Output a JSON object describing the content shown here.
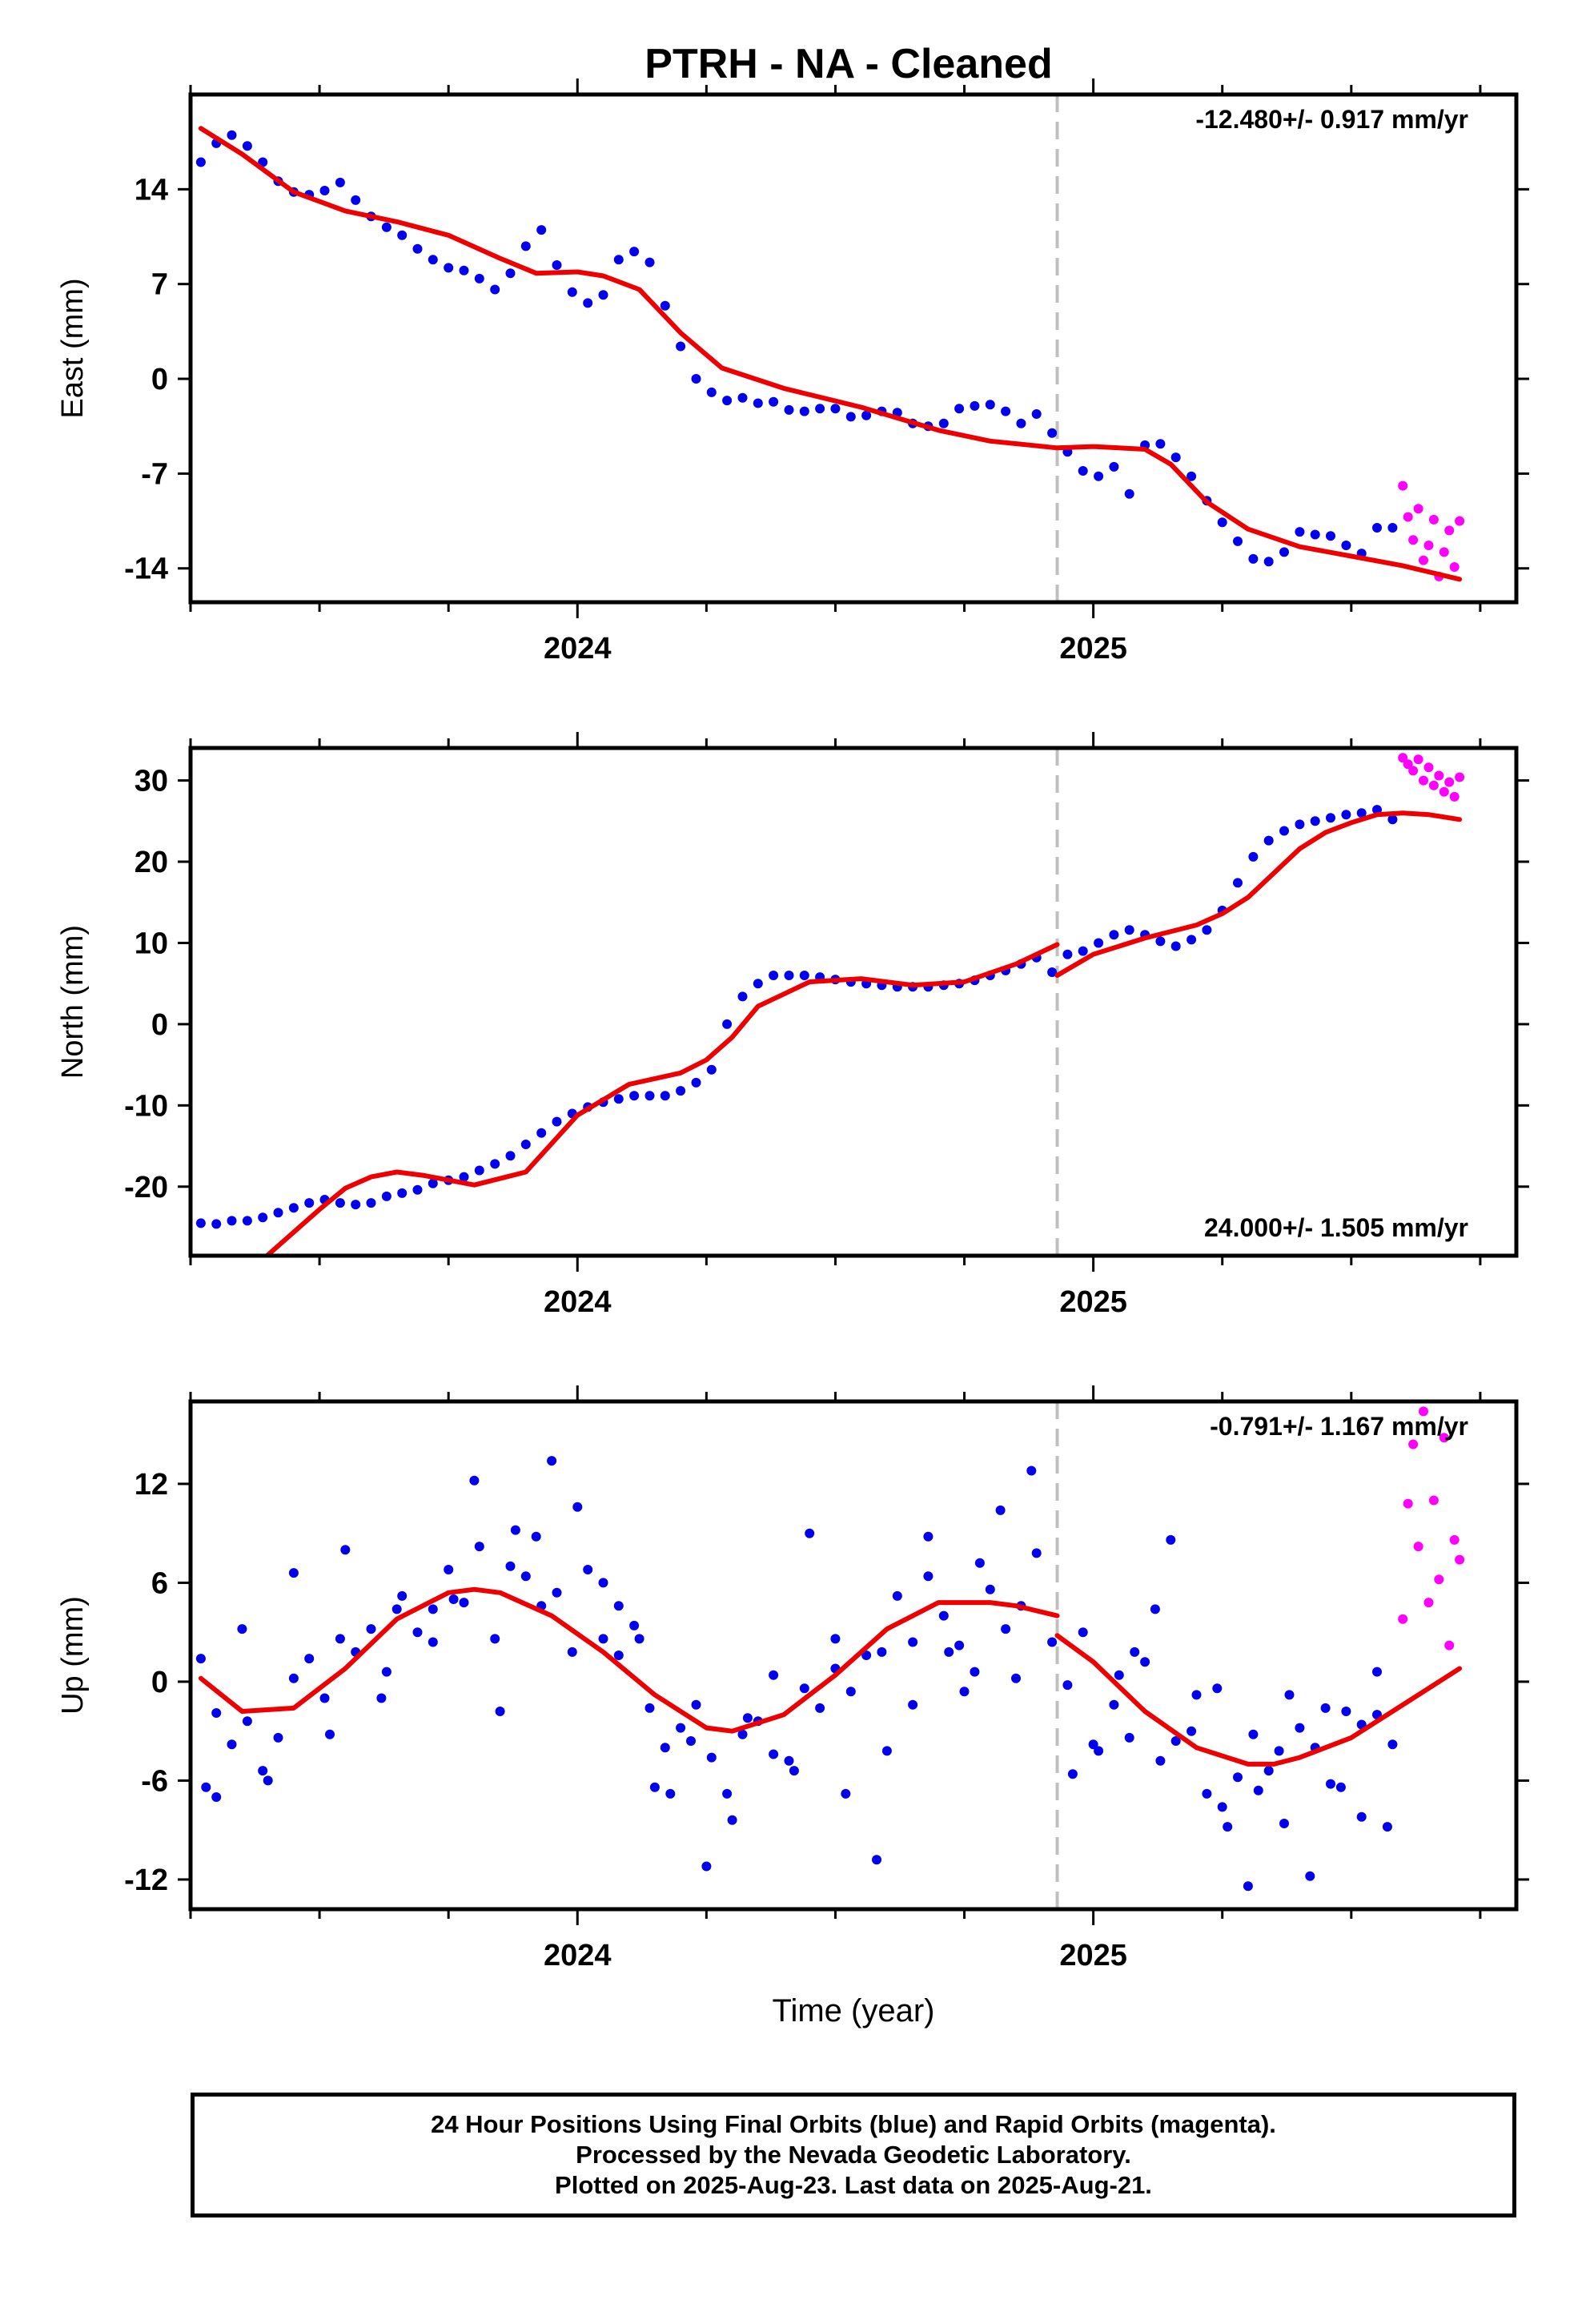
{
  "page_title": "PTRH  - NA - Cleaned",
  "footer": {
    "line1": "24 Hour Positions Using Final Orbits (blue) and Rapid Orbits (magenta).",
    "line2": "Processed by the Nevada Geodetic Laboratory.",
    "line3": "Plotted on 2025-Aug-23. Last data on 2025-Aug-21."
  },
  "colors": {
    "final": "#0000ee",
    "rapid": "#ff00ff",
    "model": "#ee0000",
    "step": "#c0c0c0"
  },
  "chart_data": [
    {
      "type": "scatter",
      "ylabel": "East (mm)",
      "rate": "-12.480+/- 0.917 mm/yr",
      "rate_position": "top-right",
      "xlim": [
        2023.25,
        2025.82
      ],
      "ylim": [
        -16.5,
        21
      ],
      "yticks": [
        -14,
        -7,
        0,
        7,
        14
      ],
      "xticks": [
        2024,
        2025
      ],
      "xlabel": "",
      "step_epoch": 2024.93,
      "series": [
        {
          "kind": "final",
          "x": [
            2023.27,
            2023.3,
            2023.33,
            2023.36,
            2023.39,
            2023.42,
            2023.45,
            2023.48,
            2023.51,
            2023.54,
            2023.57,
            2023.6,
            2023.63,
            2023.66,
            2023.69,
            2023.72,
            2023.75,
            2023.78,
            2023.81,
            2023.84,
            2023.87,
            2023.9,
            2023.93,
            2023.96,
            2023.99,
            2024.02,
            2024.05,
            2024.08,
            2024.11,
            2024.14,
            2024.17,
            2024.2,
            2024.23,
            2024.26,
            2024.29,
            2024.32,
            2024.35,
            2024.38,
            2024.41,
            2024.44,
            2024.47,
            2024.5,
            2024.53,
            2024.56,
            2024.59,
            2024.62,
            2024.65,
            2024.68,
            2024.71,
            2024.74,
            2024.77,
            2024.8,
            2024.83,
            2024.86,
            2024.89,
            2024.92,
            2024.95,
            2024.98,
            2025.01,
            2025.04,
            2025.07,
            2025.1,
            2025.13,
            2025.16,
            2025.19,
            2025.22,
            2025.25,
            2025.28,
            2025.31,
            2025.34,
            2025.37,
            2025.4,
            2025.43,
            2025.46,
            2025.49,
            2025.52,
            2025.55,
            2025.58
          ],
          "y": [
            16.0,
            17.4,
            18.0,
            17.2,
            16.0,
            14.6,
            13.8,
            13.6,
            13.9,
            14.5,
            13.2,
            12.0,
            11.2,
            10.6,
            9.6,
            8.8,
            8.2,
            8.0,
            7.4,
            6.6,
            7.8,
            9.8,
            11.0,
            8.4,
            6.4,
            5.6,
            6.2,
            8.8,
            9.4,
            8.6,
            5.4,
            2.4,
            0.0,
            -1.0,
            -1.6,
            -1.4,
            -1.8,
            -1.7,
            -2.3,
            -2.4,
            -2.2,
            -2.2,
            -2.8,
            -2.7,
            -2.4,
            -2.5,
            -3.3,
            -3.5,
            -3.3,
            -2.2,
            -2.0,
            -1.9,
            -2.4,
            -3.3,
            -2.6,
            -4.0,
            -5.4,
            -6.8,
            -7.2,
            -6.5,
            -8.5,
            -4.9,
            -4.8,
            -5.8,
            -7.2,
            -9.0,
            -10.6,
            -12.0,
            -13.3,
            -13.5,
            -12.8,
            -11.3,
            -11.5,
            -11.6,
            -12.3,
            -12.9,
            -11.0,
            -11.0
          ]
        },
        {
          "kind": "rapid",
          "x": [
            2025.6,
            2025.61,
            2025.62,
            2025.63,
            2025.64,
            2025.65,
            2025.66,
            2025.67,
            2025.68,
            2025.69,
            2025.7,
            2025.71
          ],
          "y": [
            -7.9,
            -10.2,
            -11.9,
            -9.6,
            -13.4,
            -12.3,
            -10.4,
            -14.6,
            -12.8,
            -11.2,
            -13.9,
            -10.5
          ]
        },
        {
          "kind": "model",
          "x": [
            2023.27,
            2023.35,
            2023.45,
            2023.55,
            2023.65,
            2023.75,
            2023.85,
            2023.92,
            2024.0,
            2024.05,
            2024.12,
            2024.2,
            2024.28,
            2024.4,
            2024.55,
            2024.7,
            2024.8,
            2024.93,
            2025.0,
            2025.1,
            2025.15,
            2025.22,
            2025.3,
            2025.4,
            2025.5,
            2025.6,
            2025.71
          ],
          "y": [
            18.5,
            16.6,
            13.8,
            12.4,
            11.6,
            10.6,
            8.9,
            7.8,
            7.9,
            7.6,
            6.6,
            3.4,
            0.8,
            -0.7,
            -2.1,
            -3.8,
            -4.6,
            -5.1,
            -5.0,
            -5.2,
            -6.3,
            -9.1,
            -11.1,
            -12.4,
            -13.1,
            -13.8,
            -14.8
          ]
        }
      ]
    },
    {
      "type": "scatter",
      "ylabel": "North (mm)",
      "rate": "24.000+/- 1.505 mm/yr",
      "rate_position": "bottom-right",
      "xlim": [
        2023.25,
        2025.82
      ],
      "ylim": [
        -28.5,
        34
      ],
      "yticks": [
        -20,
        -10,
        0,
        10,
        20,
        30
      ],
      "xticks": [
        2024,
        2025
      ],
      "xlabel": "",
      "step_epoch": 2024.93,
      "series": [
        {
          "kind": "final",
          "x": [
            2023.27,
            2023.3,
            2023.33,
            2023.36,
            2023.39,
            2023.42,
            2023.45,
            2023.48,
            2023.51,
            2023.54,
            2023.57,
            2023.6,
            2023.63,
            2023.66,
            2023.69,
            2023.72,
            2023.75,
            2023.78,
            2023.81,
            2023.84,
            2023.87,
            2023.9,
            2023.93,
            2023.96,
            2023.99,
            2024.02,
            2024.05,
            2024.08,
            2024.11,
            2024.14,
            2024.17,
            2024.2,
            2024.23,
            2024.26,
            2024.29,
            2024.32,
            2024.35,
            2024.38,
            2024.41,
            2024.44,
            2024.47,
            2024.5,
            2024.53,
            2024.56,
            2024.59,
            2024.62,
            2024.65,
            2024.68,
            2024.71,
            2024.74,
            2024.77,
            2024.8,
            2024.83,
            2024.86,
            2024.89,
            2024.92,
            2024.95,
            2024.98,
            2025.01,
            2025.04,
            2025.07,
            2025.1,
            2025.13,
            2025.16,
            2025.19,
            2025.22,
            2025.25,
            2025.28,
            2025.31,
            2025.34,
            2025.37,
            2025.4,
            2025.43,
            2025.46,
            2025.49,
            2025.52,
            2025.55,
            2025.58
          ],
          "y": [
            -24.5,
            -24.6,
            -24.2,
            -24.2,
            -23.8,
            -23.2,
            -22.6,
            -22.0,
            -21.6,
            -22.0,
            -22.2,
            -22.0,
            -21.2,
            -20.8,
            -20.4,
            -19.6,
            -19.2,
            -18.8,
            -18.0,
            -17.2,
            -16.2,
            -14.8,
            -13.4,
            -12.0,
            -11.0,
            -10.2,
            -9.6,
            -9.2,
            -8.8,
            -8.8,
            -8.8,
            -8.2,
            -7.2,
            -5.6,
            0.0,
            3.4,
            5.0,
            6.0,
            6.0,
            6.0,
            5.8,
            5.5,
            5.2,
            5.0,
            4.8,
            4.6,
            4.6,
            4.6,
            4.8,
            5.0,
            5.4,
            6.0,
            6.6,
            7.4,
            8.2,
            6.4,
            8.6,
            9.0,
            10.0,
            11.0,
            11.6,
            11.0,
            10.2,
            9.6,
            10.4,
            11.6,
            14.0,
            17.4,
            20.6,
            22.6,
            23.8,
            24.6,
            25.0,
            25.4,
            25.8,
            26.0,
            26.4,
            25.2
          ]
        },
        {
          "kind": "rapid",
          "x": [
            2025.6,
            2025.61,
            2025.62,
            2025.63,
            2025.64,
            2025.65,
            2025.66,
            2025.67,
            2025.68,
            2025.69,
            2025.7,
            2025.71
          ],
          "y": [
            32.8,
            32.0,
            31.2,
            32.6,
            30.0,
            31.6,
            29.4,
            30.6,
            28.6,
            29.8,
            28.0,
            30.4
          ]
        },
        {
          "kind": "model",
          "x": [
            2023.4,
            2023.5,
            2023.55,
            2023.6,
            2023.65,
            2023.7,
            2023.8,
            2023.9,
            2024.0,
            2024.1,
            2024.2,
            2024.25,
            2024.3,
            2024.35,
            2024.45,
            2024.55,
            2024.65,
            2024.75,
            2024.85,
            2024.93
          ],
          "y": [
            -28.4,
            -22.8,
            -20.2,
            -18.8,
            -18.2,
            -18.6,
            -19.8,
            -18.2,
            -11.2,
            -7.4,
            -6.0,
            -4.4,
            -1.6,
            2.2,
            5.2,
            5.6,
            4.8,
            5.2,
            7.4,
            9.8
          ]
        },
        {
          "kind": "model",
          "x": [
            2024.93,
            2025.0,
            2025.1,
            2025.2,
            2025.25,
            2025.3,
            2025.35,
            2025.4,
            2025.45,
            2025.5,
            2025.55,
            2025.6,
            2025.65,
            2025.71
          ],
          "y": [
            6.0,
            8.6,
            10.6,
            12.2,
            13.6,
            15.6,
            18.6,
            21.6,
            23.6,
            24.8,
            25.8,
            26.0,
            25.8,
            25.2
          ]
        }
      ]
    },
    {
      "type": "scatter",
      "ylabel": "Up (mm)",
      "rate": "-0.791+/- 1.167 mm/yr",
      "rate_position": "top-right",
      "xlim": [
        2023.25,
        2025.82
      ],
      "ylim": [
        -13.8,
        17
      ],
      "yticks": [
        -12,
        -6,
        0,
        6,
        12
      ],
      "xticks": [
        2024,
        2025
      ],
      "xlabel": "Time (year)",
      "step_epoch": 2024.93,
      "series": [
        {
          "kind": "final",
          "x": [
            2023.27,
            2023.3,
            2023.33,
            2023.36,
            2023.39,
            2023.42,
            2023.45,
            2023.48,
            2023.51,
            2023.54,
            2023.57,
            2023.6,
            2023.63,
            2023.66,
            2023.69,
            2023.72,
            2023.75,
            2023.78,
            2023.81,
            2023.84,
            2023.87,
            2023.9,
            2023.93,
            2023.96,
            2023.99,
            2024.02,
            2024.05,
            2024.08,
            2024.11,
            2024.14,
            2024.17,
            2024.2,
            2024.23,
            2024.26,
            2024.29,
            2024.32,
            2024.35,
            2024.38,
            2024.41,
            2024.44,
            2024.47,
            2024.5,
            2024.53,
            2024.56,
            2024.59,
            2024.62,
            2024.65,
            2024.68,
            2024.71,
            2024.74,
            2024.77,
            2024.8,
            2024.83,
            2024.86,
            2024.89,
            2024.92,
            2024.95,
            2024.98,
            2025.01,
            2025.04,
            2025.07,
            2025.1,
            2025.13,
            2025.16,
            2025.19,
            2025.22,
            2025.25,
            2025.28,
            2025.31,
            2025.34,
            2025.37,
            2025.4,
            2025.43,
            2025.46,
            2025.49,
            2025.52,
            2025.55,
            2025.58,
            2023.3,
            2023.4,
            2023.52,
            2023.62,
            2023.72,
            2023.8,
            2023.85,
            2023.92,
            2024.0,
            2024.08,
            2024.15,
            2024.22,
            2024.3,
            2024.38,
            2024.45,
            2024.52,
            2024.6,
            2024.68,
            2024.75,
            2024.82,
            2024.88,
            2025.0,
            2025.05,
            2025.12,
            2025.2,
            2025.26,
            2025.32,
            2025.38,
            2025.45,
            2025.52,
            2025.57,
            2023.28,
            2023.35,
            2023.45,
            2023.55,
            2023.65,
            2023.76,
            2023.88,
            2023.95,
            2024.05,
            2024.12,
            2024.18,
            2024.25,
            2024.33,
            2024.42,
            2024.5,
            2024.58,
            2024.65,
            2024.72,
            2024.78,
            2024.85,
            2024.96,
            2025.08,
            2025.15,
            2025.24,
            2025.3,
            2025.36,
            2025.42,
            2025.48,
            2025.55
          ],
          "y": [
            1.4,
            -1.9,
            -3.8,
            -2.4,
            -5.4,
            -3.4,
            0.2,
            1.4,
            -1.0,
            2.6,
            1.8,
            3.2,
            0.6,
            5.2,
            3.0,
            4.4,
            6.8,
            4.8,
            8.2,
            2.6,
            7.0,
            6.4,
            4.6,
            5.4,
            1.8,
            6.8,
            2.6,
            1.6,
            3.4,
            -1.6,
            -4.0,
            -2.8,
            -1.4,
            -4.6,
            -6.8,
            -3.2,
            -2.4,
            0.4,
            -4.8,
            -0.4,
            -1.6,
            0.8,
            -0.6,
            1.6,
            1.8,
            5.2,
            2.4,
            6.4,
            4.0,
            2.2,
            0.6,
            5.6,
            3.2,
            4.6,
            7.8,
            2.4,
            -0.2,
            3.0,
            -4.2,
            -1.4,
            -3.4,
            1.2,
            -4.8,
            -3.6,
            -3.0,
            -6.8,
            -7.6,
            -5.8,
            -3.2,
            -5.4,
            -8.6,
            -2.8,
            -4.0,
            -6.2,
            -1.8,
            -2.6,
            0.6,
            -3.8,
            -7.0,
            -6.0,
            -3.2,
            -1.0,
            2.4,
            12.2,
            -1.8,
            8.8,
            10.6,
            4.6,
            -6.4,
            -3.6,
            -8.4,
            -4.4,
            9.0,
            -6.8,
            -4.2,
            8.8,
            -0.6,
            10.4,
            12.8,
            -3.8,
            0.4,
            4.4,
            -0.8,
            -8.8,
            -6.6,
            -0.8,
            -1.6,
            -8.2,
            -8.8,
            -6.4,
            3.2,
            6.6,
            8.0,
            4.4,
            5.0,
            9.2,
            13.4,
            6.0,
            2.6,
            -6.8,
            -11.2,
            -2.2,
            -5.4,
            2.6,
            -10.8,
            -1.4,
            1.8,
            7.2,
            0.2,
            -5.6,
            1.8,
            8.6,
            -0.4,
            -12.4,
            -4.2,
            -11.8,
            -6.4,
            -2.0
          ]
        },
        {
          "kind": "rapid",
          "x": [
            2025.6,
            2025.61,
            2025.62,
            2025.63,
            2025.64,
            2025.65,
            2025.66,
            2025.67,
            2025.68,
            2025.69,
            2025.7,
            2025.71
          ],
          "y": [
            3.8,
            10.8,
            14.4,
            8.2,
            16.4,
            4.8,
            11.0,
            6.2,
            14.8,
            2.2,
            8.6,
            7.4
          ]
        },
        {
          "kind": "model",
          "x": [
            2023.27,
            2023.35,
            2023.45,
            2023.55,
            2023.65,
            2023.75,
            2023.8,
            2023.85,
            2023.95,
            2024.05,
            2024.15,
            2024.25,
            2024.3,
            2024.4,
            2024.5,
            2024.6,
            2024.7,
            2024.8,
            2024.85,
            2024.93
          ],
          "y": [
            0.2,
            -1.8,
            -1.6,
            0.8,
            3.8,
            5.4,
            5.6,
            5.4,
            4.0,
            1.8,
            -0.8,
            -2.8,
            -3.0,
            -2.0,
            0.4,
            3.2,
            4.8,
            4.8,
            4.6,
            4.0
          ]
        },
        {
          "kind": "model",
          "x": [
            2024.93,
            2025.0,
            2025.1,
            2025.2,
            2025.3,
            2025.35,
            2025.4,
            2025.5,
            2025.6,
            2025.71
          ],
          "y": [
            2.8,
            1.2,
            -1.8,
            -4.0,
            -5.0,
            -5.0,
            -4.6,
            -3.4,
            -1.4,
            0.8
          ]
        }
      ]
    }
  ]
}
